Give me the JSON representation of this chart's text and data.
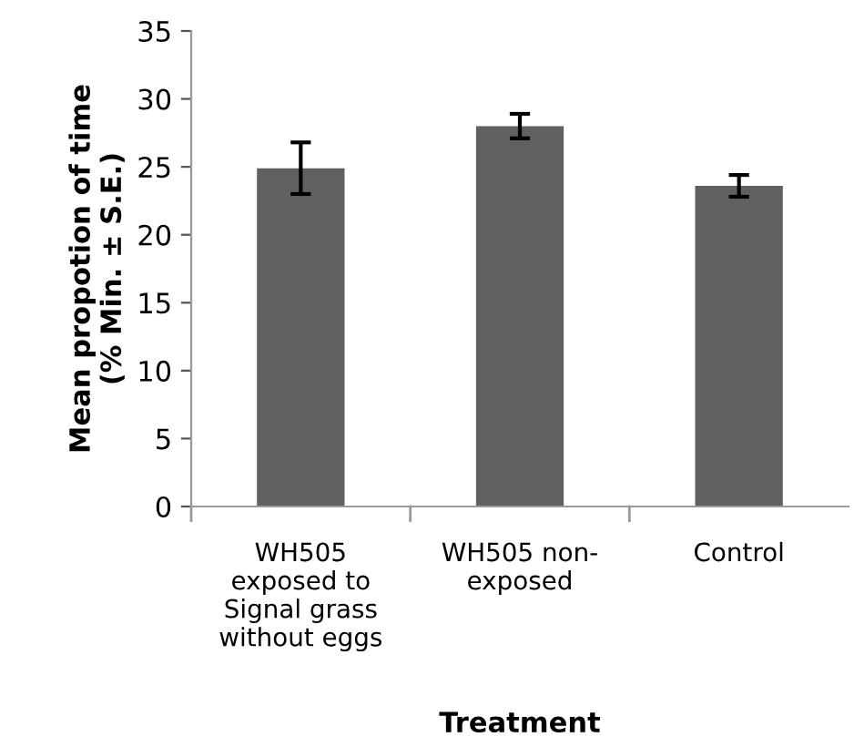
{
  "chart_data": {
    "type": "bar",
    "xlabel": "Treatment",
    "ylabel": "Mean propotion of time\n(% Min. ± S.E.)",
    "categories": [
      "WH505\nexposed to\nSignal grass\nwithout eggs",
      "WH505 non-\nexposed",
      "Control"
    ],
    "values": [
      24.9,
      28.0,
      23.6
    ],
    "errors": [
      1.9,
      0.9,
      0.8
    ],
    "color": "#606060",
    "ylim": [
      0,
      35
    ],
    "yticks": [
      0,
      5,
      10,
      15,
      20,
      25,
      30,
      35
    ],
    "grid": false,
    "legend": false
  }
}
